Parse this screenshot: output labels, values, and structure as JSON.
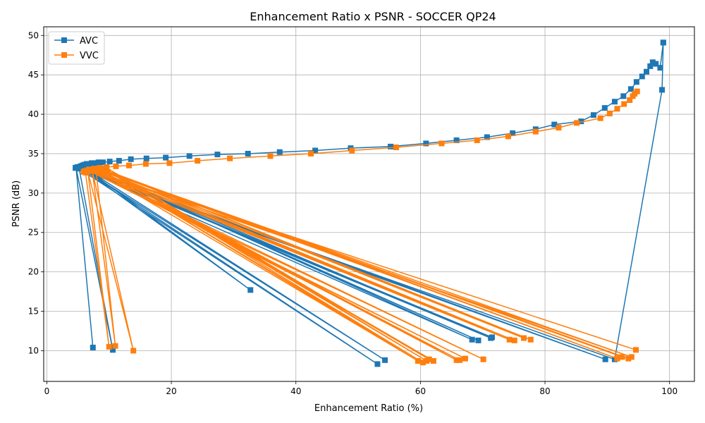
{
  "chart_data": {
    "type": "line",
    "title": "Enhancement Ratio x PSNR - SOCCER QP24",
    "xlabel": "Enhancement Ratio (%)",
    "ylabel": "PSNR (dB)",
    "xlim": [
      -0.5,
      104
    ],
    "ylim": [
      6.1,
      51.1
    ],
    "xticks": [
      0,
      20,
      40,
      60,
      80,
      100
    ],
    "yticks": [
      10,
      15,
      20,
      25,
      30,
      35,
      40,
      45,
      50
    ],
    "grid": true,
    "legend_position": "top-left",
    "series": [
      {
        "name": "AVC",
        "color": "#1f77b4",
        "marker": "square",
        "x": [
          99.0,
          98.5,
          97.8,
          97.3,
          96.9,
          96.3,
          95.6,
          94.7,
          93.8,
          92.6,
          91.2,
          89.6,
          87.8,
          85.8,
          81.5,
          78.5,
          74.8,
          70.7,
          65.8,
          60.9,
          55.2,
          48.8,
          43.1,
          37.4,
          32.3,
          27.4,
          22.9,
          19.1,
          16.0,
          13.5,
          11.6,
          10.1,
          9.0,
          8.3,
          7.8,
          7.2,
          6.8,
          6.4,
          6.0,
          5.7,
          5.4,
          5.1,
          4.9,
          4.7,
          4.6,
          4.7,
          7.4,
          4.7,
          10.6,
          5.2,
          53.1,
          5.9,
          54.3,
          6.6,
          32.7,
          6.1,
          68.3,
          8.3,
          69.3,
          8.0,
          71.3,
          6.9,
          71.5,
          7.2,
          89.7,
          6.5,
          91.2,
          98.8,
          99.0
        ],
        "y": [
          49.1,
          45.9,
          46.4,
          46.6,
          46.1,
          45.4,
          44.8,
          44.1,
          43.2,
          42.3,
          41.6,
          40.8,
          39.9,
          39.1,
          38.7,
          38.1,
          37.6,
          37.1,
          36.7,
          36.3,
          35.9,
          35.7,
          35.4,
          35.2,
          35.0,
          34.9,
          34.7,
          34.5,
          34.4,
          34.3,
          34.1,
          34.0,
          33.9,
          33.9,
          33.8,
          33.8,
          33.7,
          33.7,
          33.6,
          33.5,
          33.4,
          33.3,
          33.3,
          33.2,
          33.2,
          33.2,
          10.4,
          33.2,
          10.1,
          33.1,
          8.3,
          33.0,
          8.8,
          32.9,
          17.7,
          32.9,
          11.4,
          32.8,
          11.3,
          32.8,
          11.6,
          32.7,
          11.7,
          32.7,
          8.9,
          32.6,
          8.9,
          43.1,
          49.1
        ]
      },
      {
        "name": "VVC",
        "color": "#ff7f0e",
        "marker": "square",
        "x": [
          94.8,
          94.4,
          94.1,
          93.6,
          92.7,
          91.6,
          90.4,
          88.9,
          85.1,
          82.2,
          78.5,
          74.1,
          69.1,
          63.4,
          56.1,
          49.0,
          42.4,
          35.9,
          29.4,
          24.2,
          19.7,
          15.9,
          13.2,
          11.1,
          9.6,
          8.5,
          7.6,
          7.0,
          6.5,
          6.1,
          5.9,
          6.2,
          10.0,
          6.6,
          13.9,
          7.3,
          11.0,
          7.9,
          59.6,
          8.6,
          60.4,
          9.3,
          61.0,
          9.6,
          61.4,
          9.0,
          62.1,
          8.4,
          65.8,
          7.8,
          66.3,
          7.1,
          67.2,
          6.8,
          70.1,
          7.2,
          74.3,
          7.6,
          75.1,
          8.0,
          76.6,
          8.5,
          77.7,
          9.1,
          91.6,
          8.8,
          92.4,
          9.4,
          93.4,
          9.8,
          93.9,
          7.4,
          94.6
        ],
        "y": [
          42.9,
          42.6,
          42.3,
          41.8,
          41.3,
          40.7,
          40.1,
          39.5,
          38.9,
          38.3,
          37.8,
          37.2,
          36.7,
          36.3,
          35.8,
          35.4,
          35.0,
          34.7,
          34.4,
          34.1,
          33.8,
          33.7,
          33.5,
          33.4,
          33.3,
          33.2,
          33.1,
          33.0,
          32.9,
          32.8,
          32.7,
          32.6,
          10.5,
          32.7,
          10.0,
          32.8,
          10.6,
          32.9,
          8.7,
          33.0,
          8.5,
          33.1,
          8.7,
          33.2,
          8.9,
          33.1,
          8.7,
          33.0,
          8.8,
          32.9,
          8.8,
          32.8,
          9.0,
          32.8,
          8.9,
          32.9,
          11.4,
          33.0,
          11.3,
          33.1,
          11.6,
          33.2,
          11.4,
          33.0,
          9.0,
          32.9,
          9.2,
          32.8,
          9.0,
          32.7,
          9.2,
          32.8,
          10.1
        ]
      }
    ]
  }
}
